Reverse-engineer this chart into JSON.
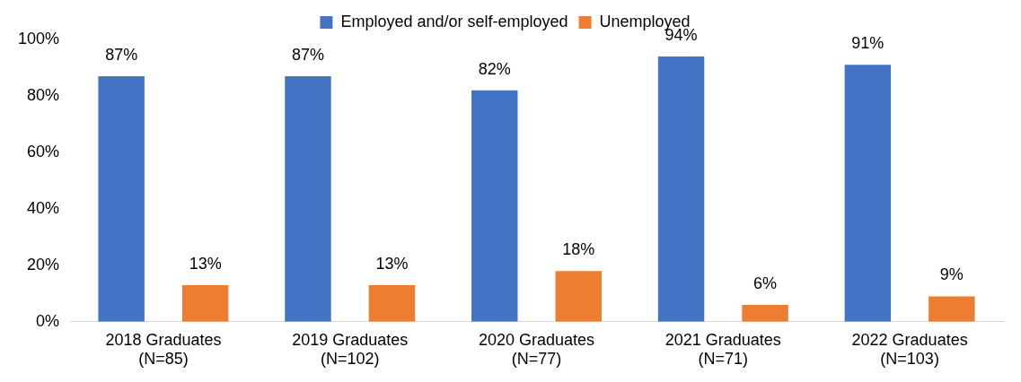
{
  "chart_data": {
    "type": "bar",
    "categories": [
      "2018 Graduates\n(N=85)",
      "2019 Graduates\n(N=102)",
      "2020 Graduates\n(N=77)",
      "2021 Graduates\n(N=71)",
      "2022 Graduates\n(N=103)"
    ],
    "series": [
      {
        "name": "Employed and/or self-employed",
        "color": "#4472c4",
        "values": [
          87,
          87,
          82,
          94,
          91
        ],
        "value_labels": [
          "87%",
          "87%",
          "82%",
          "94%",
          "91%"
        ]
      },
      {
        "name": "Unemployed",
        "color": "#ed7d31",
        "values": [
          13,
          13,
          18,
          6,
          9
        ],
        "value_labels": [
          "13%",
          "13%",
          "18%",
          "6%",
          "9%"
        ]
      }
    ],
    "ylim": [
      0,
      100
    ],
    "yticks": [
      {
        "value": 0,
        "label": "0%"
      },
      {
        "value": 20,
        "label": "20%"
      },
      {
        "value": 40,
        "label": "40%"
      },
      {
        "value": 60,
        "label": "60%"
      },
      {
        "value": 80,
        "label": "80%"
      },
      {
        "value": 100,
        "label": "100%"
      }
    ],
    "grid": false,
    "legend": "top"
  }
}
